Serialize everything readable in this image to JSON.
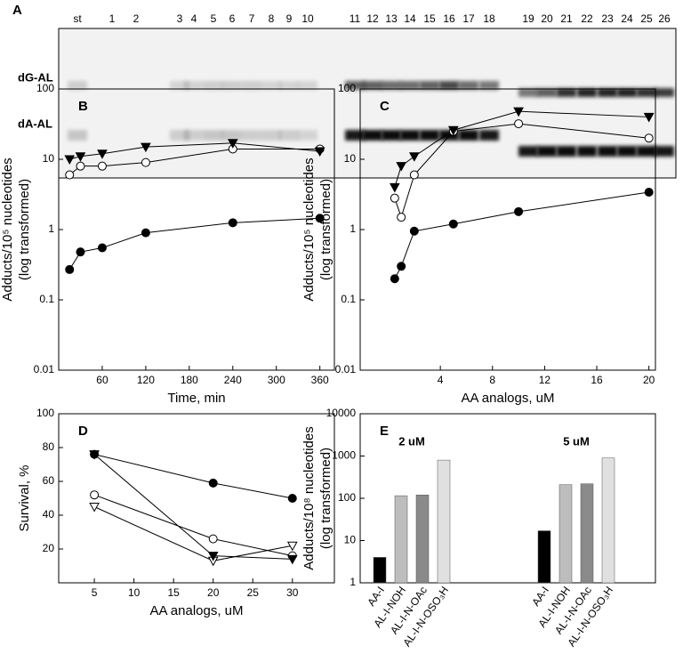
{
  "gel": {
    "panel": "A",
    "lanes": [
      "st",
      "1",
      "2",
      "3",
      "4",
      "5",
      "6",
      "7",
      "8",
      "9",
      "10",
      "11",
      "12",
      "13",
      "14",
      "15",
      "16",
      "17",
      "18",
      "19",
      "20",
      "21",
      "22",
      "23",
      "24",
      "25",
      "26"
    ],
    "bands": [
      "dG-AL",
      "dA-AL"
    ]
  },
  "chart_data": [
    {
      "type": "line",
      "panel": "B",
      "x_label": "Time, min",
      "y_label": [
        "Adducts/10⁵ nucleotides",
        "(log transformed)"
      ],
      "y_scale": "log",
      "xlim": [
        0,
        380
      ],
      "ylim": [
        0.01,
        100
      ],
      "xticks": [
        60,
        120,
        180,
        240,
        300,
        360
      ],
      "yticks": [
        0.01,
        0.1,
        1,
        10,
        100
      ],
      "x": [
        15,
        30,
        60,
        120,
        240,
        360
      ],
      "series": [
        {
          "marker": "circle",
          "filled": true,
          "color": "#000000",
          "values": [
            0.27,
            0.48,
            0.55,
            0.9,
            1.25,
            1.45
          ]
        },
        {
          "marker": "circle",
          "filled": false,
          "color": "#000000",
          "values": [
            6,
            8,
            8,
            9,
            14,
            14
          ]
        },
        {
          "marker": "triangle-down",
          "filled": true,
          "color": "#000000",
          "values": [
            10,
            11,
            12,
            15,
            17,
            13
          ]
        }
      ]
    },
    {
      "type": "line",
      "panel": "C",
      "x_label": "AA analogs, uM",
      "y_label": [
        "Adducts/10⁵ nucleotides",
        "(log transformed)"
      ],
      "y_scale": "log",
      "xlim": [
        -2.15,
        20.5
      ],
      "ylim": [
        0.01,
        100
      ],
      "xticks": [
        4,
        8,
        12,
        16,
        20
      ],
      "yticks": [
        0.01,
        0.1,
        1,
        10,
        100
      ],
      "x": [
        0.5,
        1,
        2,
        5,
        10,
        20
      ],
      "series": [
        {
          "marker": "circle",
          "filled": true,
          "color": "#000000",
          "values": [
            0.2,
            0.3,
            0.95,
            1.2,
            1.8,
            3.4
          ]
        },
        {
          "marker": "circle",
          "filled": false,
          "color": "#000000",
          "values": [
            2.8,
            1.5,
            6,
            25,
            32,
            20
          ]
        },
        {
          "marker": "triangle-down",
          "filled": true,
          "color": "#000000",
          "values": [
            4,
            8,
            11,
            26,
            48,
            40
          ]
        }
      ]
    },
    {
      "type": "line",
      "panel": "D",
      "x_label": "AA analogs, uM",
      "y_label": [
        "Survival, %"
      ],
      "y_scale": "linear",
      "xlim": [
        0.5,
        35.3
      ],
      "ylim": [
        0,
        100
      ],
      "xticks": [
        5,
        10,
        15,
        20,
        25,
        30
      ],
      "yticks": [
        20,
        40,
        60,
        80,
        100
      ],
      "x": [
        5,
        20,
        30
      ],
      "series": [
        {
          "marker": "circle",
          "filled": true,
          "color": "#000000",
          "values": [
            76,
            59,
            50
          ]
        },
        {
          "marker": "circle",
          "filled": false,
          "color": "#000000",
          "values": [
            52,
            26,
            16
          ]
        },
        {
          "marker": "triangle-down",
          "filled": false,
          "color": "#000000",
          "values": [
            45,
            13,
            22
          ]
        },
        {
          "marker": "triangle-down",
          "filled": true,
          "color": "#000000",
          "values": [
            76,
            16,
            14
          ]
        }
      ]
    },
    {
      "type": "bar",
      "panel": "E",
      "y_label": [
        "Adducts/10⁸ nucleotides",
        "(log transformed)"
      ],
      "y_scale": "log",
      "ylim": [
        1,
        10000
      ],
      "yticks": [
        1,
        10,
        100,
        1000,
        10000
      ],
      "categories": [
        "2 uM",
        "5 uM"
      ],
      "series": [
        {
          "name": "AA-I",
          "color": "#000000",
          "values": [
            4,
            17
          ]
        },
        {
          "name": "AL-I-NOH",
          "color": "#bdbdbd",
          "values": [
            115,
            210
          ]
        },
        {
          "name": "AL-I-N-OAc",
          "color": "#8a8a8a",
          "values": [
            120,
            220
          ]
        },
        {
          "name": "AL-I-N-OSO₃H",
          "color": "#e0e0e0",
          "values": [
            800,
            900
          ]
        }
      ]
    }
  ]
}
